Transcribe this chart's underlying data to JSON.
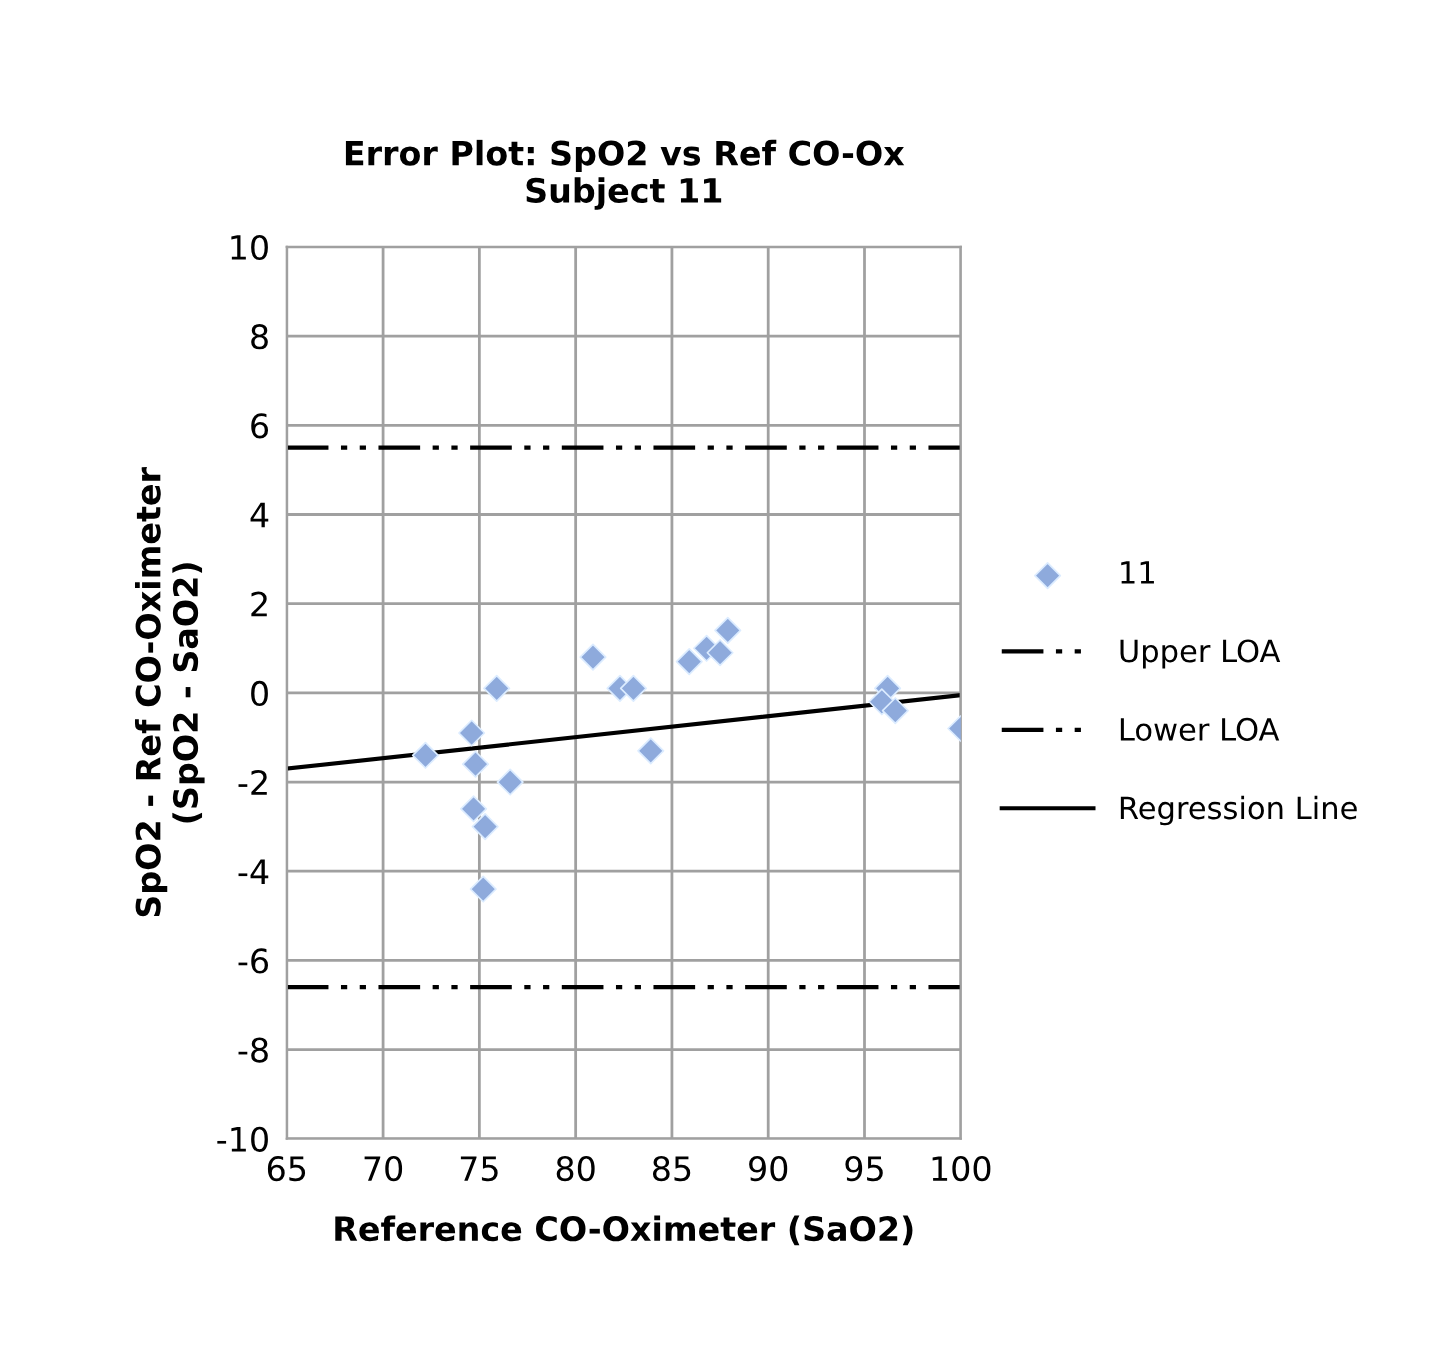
{
  "chart_data": {
    "type": "scatter",
    "title": "Error Plot: SpO2 vs Ref CO-Ox\nSubject 11",
    "xlabel": "Reference CO-Oximeter (SaO2)",
    "ylabel": "SpO2 - Ref CO-Oximeter\n(SpO2 - SaO2)",
    "xlim": [
      65,
      100
    ],
    "xticks": [
      65,
      70,
      75,
      80,
      85,
      90,
      95,
      100
    ],
    "ylim": [
      -10,
      10
    ],
    "yticks": [
      -10,
      -8,
      -6,
      -4,
      -2,
      0,
      2,
      4,
      6,
      8,
      10
    ],
    "grid": true,
    "legend": "right",
    "series": [
      {
        "name": "11",
        "marker": "diamond",
        "color": "#8eaadc",
        "x": [
          72.2,
          74.6,
          74.8,
          74.7,
          75.3,
          75.2,
          75.9,
          76.6,
          80.9,
          82.3,
          83.0,
          83.9,
          85.9,
          86.8,
          87.5,
          87.9,
          96.2,
          95.9,
          96.6,
          100
        ],
        "values": [
          -1.4,
          -0.9,
          -1.6,
          -2.6,
          -3.0,
          -4.4,
          0.1,
          -2.0,
          0.8,
          0.1,
          0.1,
          -1.3,
          0.7,
          1.0,
          0.9,
          1.4,
          0.1,
          -0.2,
          -0.4,
          -0.8
        ]
      },
      {
        "name": "Upper LOA",
        "type": "line",
        "line_style": "dashed",
        "color": "#000000",
        "x": [
          65,
          100
        ],
        "values": [
          5.5,
          5.5
        ]
      },
      {
        "name": "Lower LOA",
        "type": "line",
        "line_style": "dashed",
        "color": "#000000",
        "x": [
          65,
          100
        ],
        "values": [
          -6.6,
          -6.6
        ]
      },
      {
        "name": "Regression Line",
        "type": "line",
        "line_style": "solid",
        "color": "#000000",
        "x": [
          65,
          100
        ],
        "values": [
          -1.7,
          -0.05
        ]
      }
    ]
  }
}
